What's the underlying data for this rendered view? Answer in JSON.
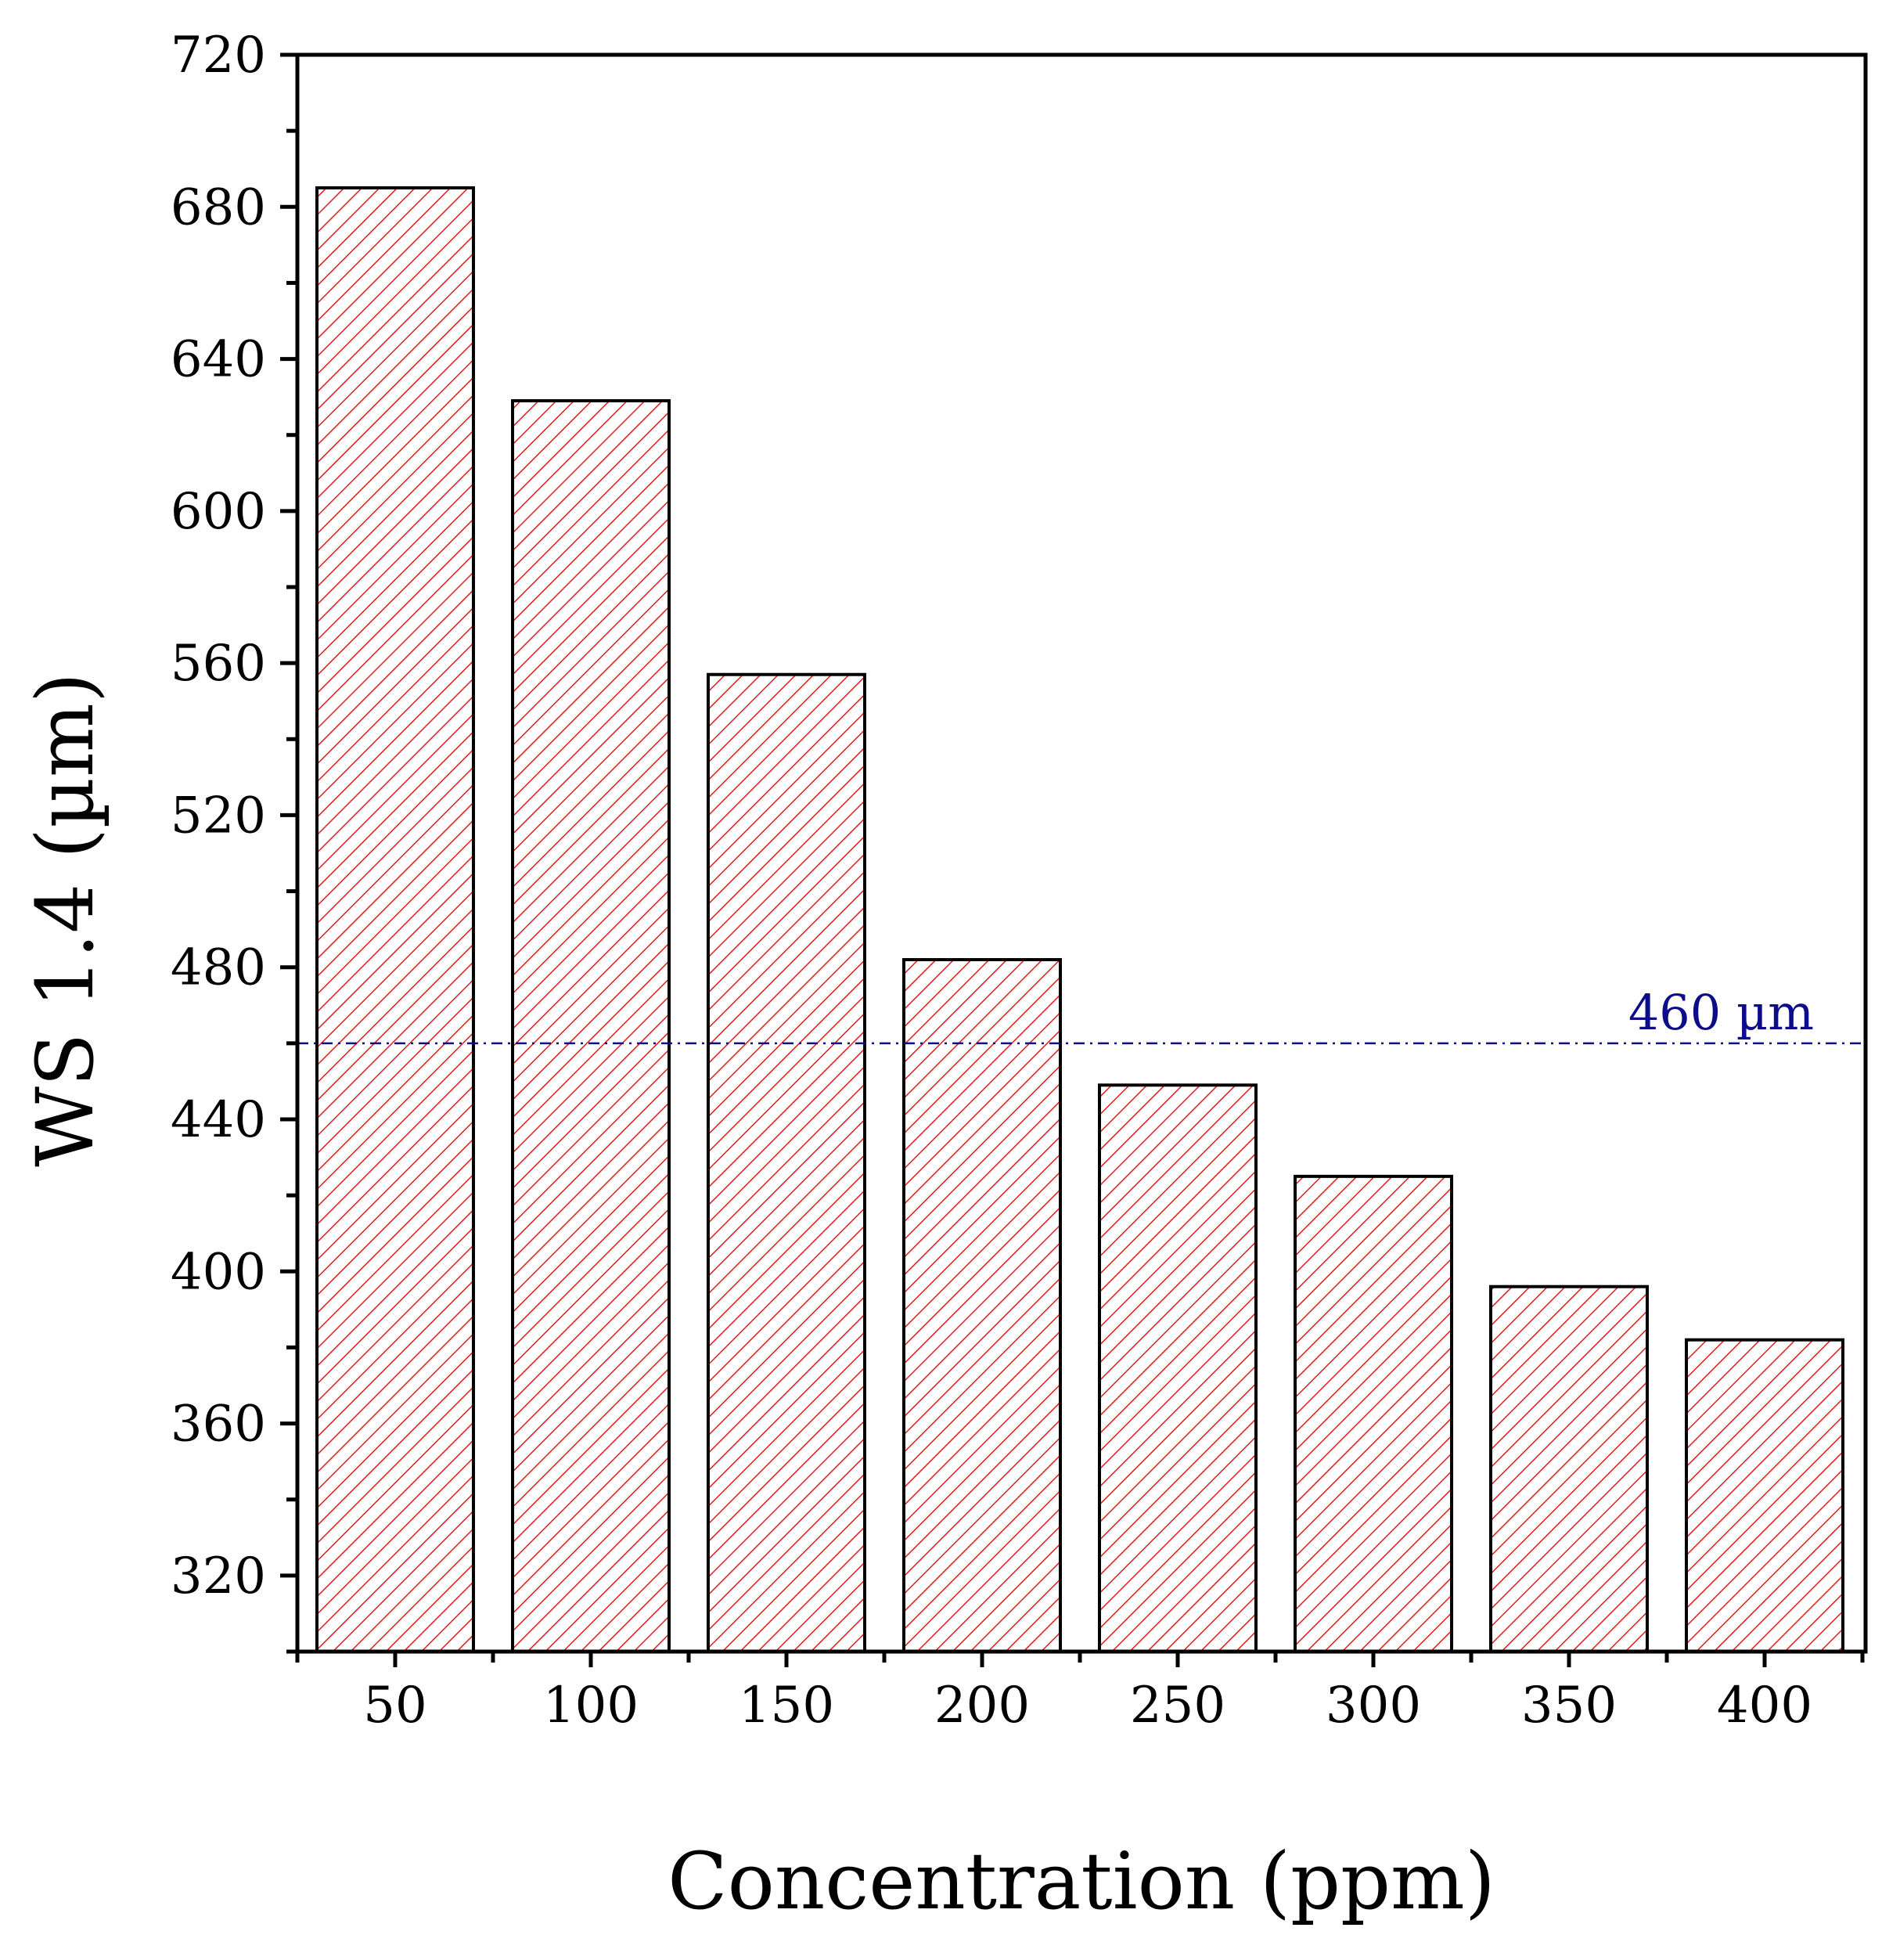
{
  "chart_data": {
    "type": "bar",
    "title": "",
    "xlabel": "Concentration (ppm)",
    "ylabel": "WS 1.4 (µm)",
    "categories": [
      "50",
      "100",
      "150",
      "200",
      "250",
      "300",
      "350",
      "400"
    ],
    "values": [
      685,
      629,
      557,
      482,
      449,
      425,
      396,
      382
    ],
    "ylim": [
      300,
      720
    ],
    "yticks": [
      320,
      360,
      400,
      440,
      480,
      520,
      560,
      600,
      640,
      680,
      720
    ],
    "yticks_minor_step": 20,
    "bar_fill": "#e31b1b",
    "bar_pattern": "diagonal-hatch",
    "reference_line": {
      "value": 460,
      "label": "460 µm",
      "color": "#0d0d8c",
      "style": "dash-dot"
    },
    "grid": false
  }
}
